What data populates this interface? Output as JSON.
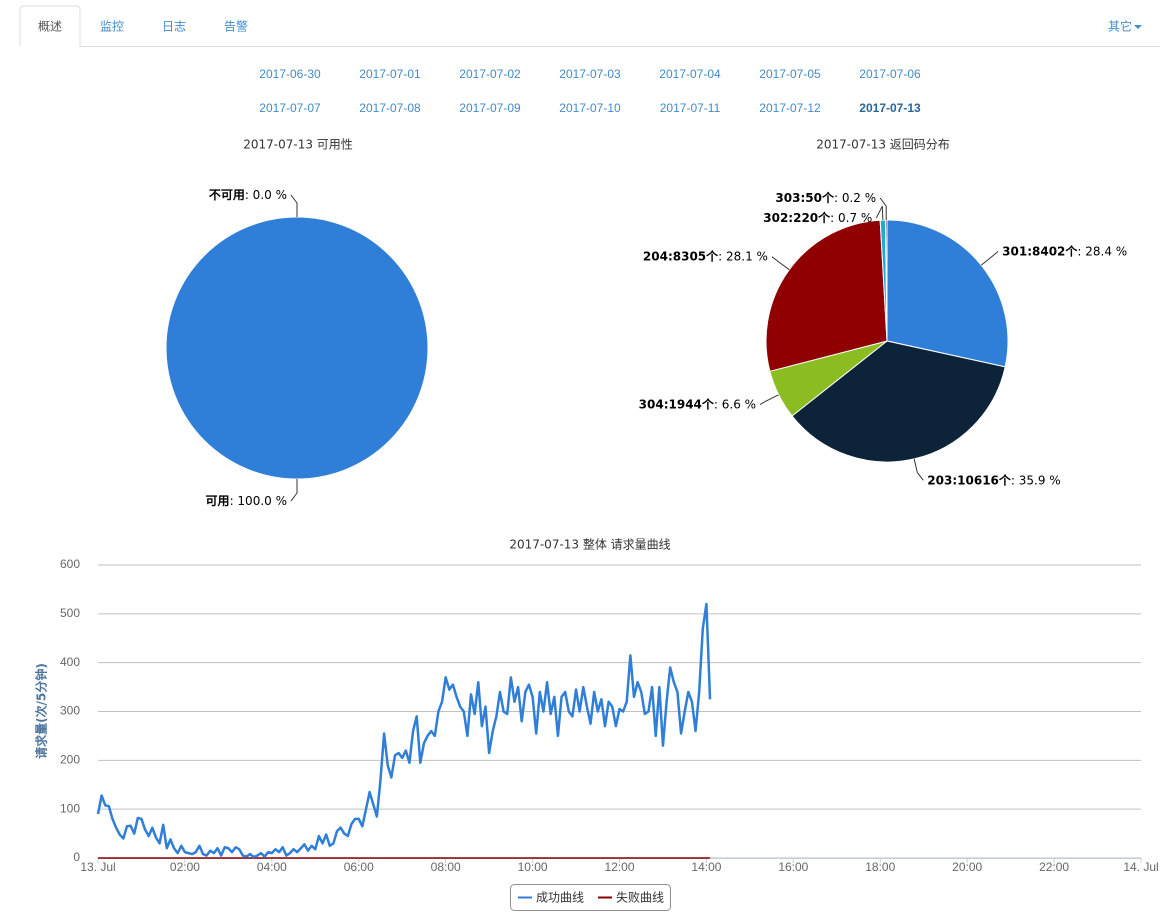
{
  "tabs": [
    "概述",
    "监控",
    "日志",
    "告警"
  ],
  "menu": "其它",
  "dates": [
    "2017-06-30",
    "2017-07-01",
    "2017-07-02",
    "2017-07-03",
    "2017-07-04",
    "2017-07-05",
    "2017-07-06",
    "2017-07-07",
    "2017-07-08",
    "2017-07-09",
    "2017-07-10",
    "2017-07-11",
    "2017-07-12",
    "2017-07-13"
  ],
  "chart_data": [
    {
      "type": "pie",
      "title": "2017-07-13 可用性",
      "categories": [
        "不可用",
        "可用"
      ],
      "values": [
        0,
        100
      ],
      "value_labels": [
        ": 0.0 %",
        ": 100.0 %"
      ],
      "colors": [
        "#2f7ed8",
        "#2f7ed8"
      ]
    },
    {
      "type": "pie",
      "title": "2017-07-13 返回码分布",
      "categories": [
        "301:8402个",
        "203:10616个",
        "304:1944个",
        "204:8305个",
        "302:220个",
        "303:50个"
      ],
      "values": [
        28.4,
        35.9,
        6.6,
        28.1,
        0.7,
        0.2
      ],
      "value_labels": [
        ": 28.4 %",
        ": 35.9 %",
        ": 6.6 %",
        ": 28.1 %",
        ": 0.7 %",
        ": 0.2 %"
      ],
      "colors": [
        "#2f7ed8",
        "#0d233a",
        "#8bbc21",
        "#910000",
        "#1aadce",
        "#492970"
      ]
    },
    {
      "type": "line",
      "title": "2017-07-13 整体 请求量曲线",
      "y_label": "请求量(次/5分钟)",
      "grid": true,
      "legend": "bottom",
      "ylim": [
        0,
        600
      ],
      "yticks": [
        0,
        100,
        200,
        300,
        400,
        500,
        600
      ],
      "xlim": [
        "00:00",
        "24:00"
      ],
      "xticks": [
        {
          "value": "00:00",
          "label": "13. Jul"
        },
        "02:00",
        "04:00",
        "06:00",
        "08:00",
        "10:00",
        "12:00",
        "14:00",
        "16:00",
        "18:00",
        "20:00",
        "22:00",
        {
          "value": "24:00",
          "label": "14. Jul"
        }
      ],
      "x": [
        "00:00",
        "00:05",
        "00:10",
        "00:15",
        "00:20",
        "00:25",
        "00:30",
        "00:35",
        "00:40",
        "00:45",
        "00:50",
        "00:55",
        "01:00",
        "01:05",
        "01:10",
        "01:15",
        "01:20",
        "01:25",
        "01:30",
        "01:35",
        "01:40",
        "01:45",
        "01:50",
        "01:55",
        "02:00",
        "02:05",
        "02:10",
        "02:15",
        "02:20",
        "02:25",
        "02:30",
        "02:35",
        "02:40",
        "02:45",
        "02:50",
        "02:55",
        "03:00",
        "03:05",
        "03:10",
        "03:15",
        "03:20",
        "03:25",
        "03:30",
        "03:35",
        "03:40",
        "03:45",
        "03:50",
        "03:55",
        "04:00",
        "04:05",
        "04:10",
        "04:15",
        "04:20",
        "04:25",
        "04:30",
        "04:35",
        "04:40",
        "04:45",
        "04:50",
        "04:55",
        "05:00",
        "05:05",
        "05:10",
        "05:15",
        "05:20",
        "05:25",
        "05:30",
        "05:35",
        "05:40",
        "05:45",
        "05:50",
        "05:55",
        "06:00",
        "06:05",
        "06:10",
        "06:15",
        "06:20",
        "06:25",
        "06:30",
        "06:35",
        "06:40",
        "06:45",
        "06:50",
        "06:55",
        "07:00",
        "07:05",
        "07:10",
        "07:15",
        "07:20",
        "07:25",
        "07:30",
        "07:35",
        "07:40",
        "07:45",
        "07:50",
        "07:55",
        "08:00",
        "08:05",
        "08:10",
        "08:15",
        "08:20",
        "08:25",
        "08:30",
        "08:35",
        "08:40",
        "08:45",
        "08:50",
        "08:55",
        "09:00",
        "09:05",
        "09:10",
        "09:15",
        "09:20",
        "09:25",
        "09:30",
        "09:35",
        "09:40",
        "09:45",
        "09:50",
        "09:55",
        "10:00",
        "10:05",
        "10:10",
        "10:15",
        "10:20",
        "10:25",
        "10:30",
        "10:35",
        "10:40",
        "10:45",
        "10:50",
        "10:55",
        "11:00",
        "11:05",
        "11:10",
        "11:15",
        "11:20",
        "11:25",
        "11:30",
        "11:35",
        "11:40",
        "11:45",
        "11:50",
        "11:55",
        "12:00",
        "12:05",
        "12:10",
        "12:15",
        "12:20",
        "12:25",
        "12:30",
        "12:35",
        "12:40",
        "12:45",
        "12:50",
        "12:55",
        "13:00",
        "13:05",
        "13:10",
        "13:15",
        "13:20",
        "13:25",
        "13:30",
        "13:35",
        "13:40",
        "13:45",
        "13:50",
        "13:55",
        "14:00",
        "14:05"
      ],
      "series": [
        {
          "name": "成功曲线",
          "color": "#2f7ed8",
          "values": [
            90,
            128,
            108,
            106,
            80,
            62,
            48,
            40,
            65,
            66,
            50,
            82,
            80,
            58,
            45,
            62,
            42,
            30,
            68,
            20,
            38,
            20,
            10,
            25,
            12,
            10,
            8,
            12,
            25,
            8,
            5,
            15,
            10,
            20,
            5,
            22,
            20,
            12,
            22,
            18,
            5,
            3,
            8,
            2,
            5,
            10,
            3,
            12,
            10,
            18,
            12,
            22,
            5,
            10,
            18,
            12,
            20,
            28,
            15,
            25,
            18,
            45,
            30,
            48,
            25,
            30,
            55,
            62,
            50,
            45,
            70,
            80,
            80,
            65,
            100,
            135,
            110,
            85,
            160,
            255,
            190,
            165,
            210,
            215,
            205,
            220,
            195,
            260,
            290,
            195,
            235,
            250,
            260,
            250,
            300,
            320,
            370,
            345,
            355,
            330,
            310,
            300,
            250,
            335,
            295,
            360,
            270,
            310,
            215,
            260,
            290,
            340,
            300,
            295,
            370,
            320,
            350,
            280,
            340,
            355,
            330,
            255,
            340,
            300,
            360,
            295,
            330,
            250,
            330,
            340,
            300,
            290,
            345,
            300,
            350,
            310,
            275,
            340,
            300,
            325,
            270,
            320,
            310,
            270,
            305,
            300,
            320,
            415,
            330,
            360,
            340,
            295,
            300,
            350,
            250,
            350,
            230,
            320,
            390,
            360,
            340,
            255,
            300,
            340,
            320,
            260,
            340,
            470,
            520,
            325
          ]
        },
        {
          "name": "失败曲线",
          "color": "#8b0000",
          "values": [
            0,
            0,
            0,
            0,
            0,
            0,
            0,
            0,
            0,
            0,
            0,
            0,
            0,
            0,
            0,
            0,
            0,
            0,
            0,
            0,
            0,
            0,
            0,
            0,
            0,
            0,
            0,
            0,
            0,
            0,
            0,
            0,
            0,
            0,
            0,
            0,
            0,
            0,
            0,
            0,
            0,
            0,
            0,
            0,
            0,
            0,
            0,
            0,
            0,
            0,
            0,
            0,
            0,
            0,
            0,
            0,
            0,
            0,
            0,
            0,
            0,
            0,
            0,
            0,
            0,
            0,
            0,
            0,
            0,
            0,
            0,
            0,
            0,
            0,
            0,
            0,
            0,
            0,
            0,
            0,
            0,
            0,
            0,
            0,
            0,
            0,
            0,
            0,
            0,
            0,
            0,
            0,
            0,
            0,
            0,
            0,
            0,
            0,
            0,
            0,
            0,
            0,
            0,
            0,
            0,
            0,
            0,
            0,
            0,
            0,
            0,
            0,
            0,
            0,
            0,
            0,
            0,
            0,
            0,
            0,
            0,
            0,
            0,
            0,
            0,
            0,
            0,
            0,
            0,
            0,
            0,
            0,
            0,
            0,
            0,
            0,
            0,
            0,
            0,
            0,
            0,
            0,
            0,
            0,
            0,
            0,
            0,
            0,
            0,
            0,
            0,
            0,
            0,
            0,
            0,
            0,
            0,
            0,
            0,
            0,
            0,
            0,
            0,
            0,
            0,
            0,
            0,
            0,
            0,
            0
          ]
        }
      ]
    }
  ]
}
